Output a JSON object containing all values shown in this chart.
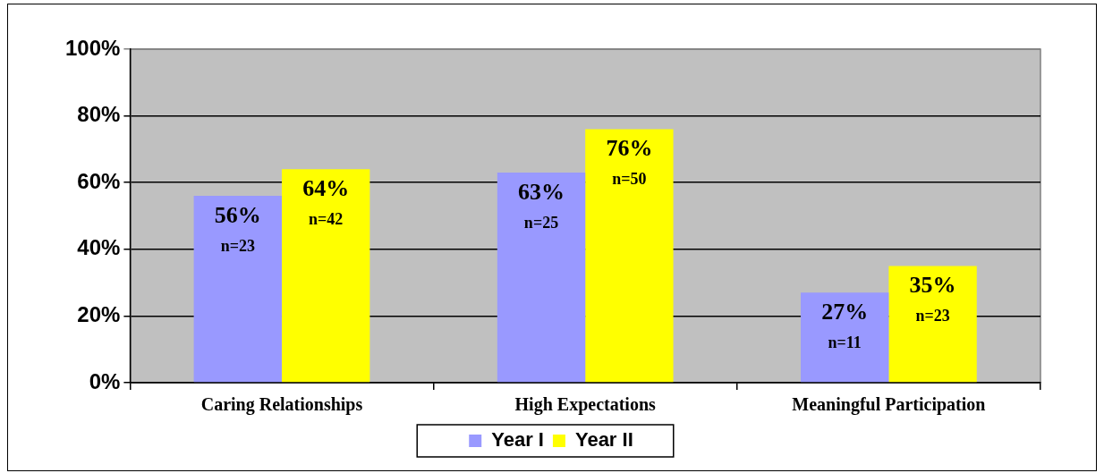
{
  "chart_data": {
    "type": "bar",
    "categories": [
      "Caring Relationships",
      "High Expectations",
      "Meaningful Participation"
    ],
    "series": [
      {
        "name": "Year I",
        "color": "#9999ff",
        "values": [
          56,
          63,
          27
        ],
        "value_labels": [
          "56%\nn=23",
          "63%\nn=25",
          "27%\nn=11"
        ]
      },
      {
        "name": "Year II",
        "color": "#ffff00",
        "values": [
          64,
          76,
          35
        ],
        "value_labels": [
          "64%\nn=42",
          "76%\nn=50",
          "35%\nn=23"
        ]
      }
    ],
    "ylim": [
      0,
      100
    ],
    "yticks": [
      {
        "value": 0,
        "label": "0%"
      },
      {
        "value": 20,
        "label": "20%"
      },
      {
        "value": 40,
        "label": "40%"
      },
      {
        "value": 60,
        "label": "60%"
      },
      {
        "value": 80,
        "label": "80%"
      },
      {
        "value": 100,
        "label": "100%"
      }
    ],
    "grid": "y",
    "legend": "bottom"
  }
}
